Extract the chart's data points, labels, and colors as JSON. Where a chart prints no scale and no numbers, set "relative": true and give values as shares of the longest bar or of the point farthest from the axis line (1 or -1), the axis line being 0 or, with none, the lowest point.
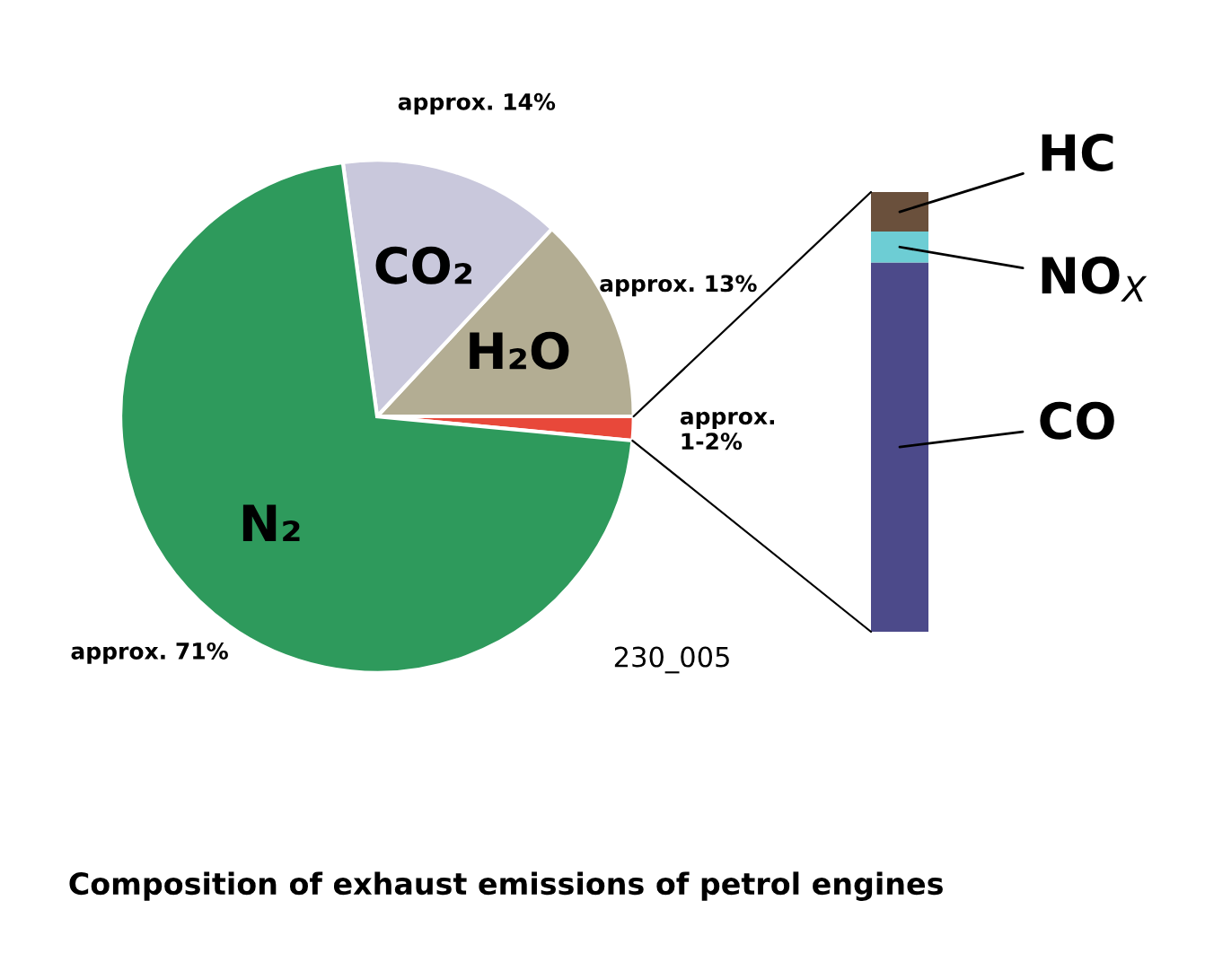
{
  "chart_data": [
    {
      "type": "pie",
      "title": "Composition of exhaust emissions of petrol engines",
      "categories": [
        null,
        "H₂O",
        "CO₂",
        "N₂"
      ],
      "values": [
        1.5,
        13,
        14,
        71
      ],
      "colors": [
        "#e8483a",
        "#b3ad93",
        "#c9c8dc",
        "#2e9a5c"
      ],
      "value_labels": [
        "approx. 1-2%",
        "approx. 13%",
        "approx. 14%",
        "approx. 71%"
      ],
      "annotations": [
        "230_005"
      ]
    },
    {
      "type": "bar",
      "stacked": true,
      "relative": true,
      "categories": [
        null
      ],
      "series": [
        {
          "name": "CO",
          "color": "#4c4a8a",
          "values": [
            0.84
          ]
        },
        {
          "name": "NO$_{X}$",
          "color": "#6dcdd4",
          "values": [
            0.07
          ]
        },
        {
          "name": "HC",
          "color": "#6a503c",
          "values": [
            0.09
          ]
        }
      ]
    }
  ]
}
